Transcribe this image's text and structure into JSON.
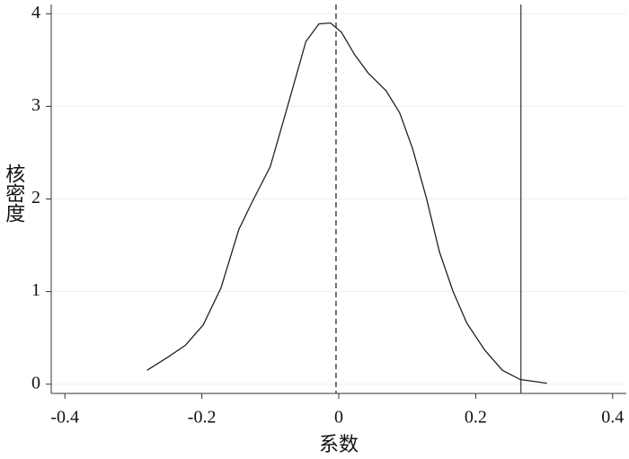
{
  "chart_data": {
    "type": "line",
    "x_label": "系数",
    "y_label": "核密度",
    "x": [
      -0.28,
      -0.25,
      -0.224,
      -0.198,
      -0.172,
      -0.146,
      -0.127,
      -0.1,
      -0.074,
      -0.048,
      -0.029,
      -0.012,
      0.004,
      0.023,
      0.043,
      0.069,
      0.089,
      0.108,
      0.128,
      0.147,
      0.167,
      0.187,
      0.213,
      0.239,
      0.265,
      0.304
    ],
    "series": [
      {
        "color": "#222222",
        "values": [
          0.15,
          0.29,
          0.42,
          0.64,
          1.04,
          1.67,
          1.96,
          2.35,
          3.02,
          3.7,
          3.89,
          3.9,
          3.8,
          3.56,
          3.36,
          3.17,
          2.93,
          2.54,
          2.01,
          1.43,
          1.0,
          0.66,
          0.37,
          0.15,
          0.05,
          0.01
        ]
      }
    ],
    "reference_lines": [
      {
        "value": -0.004,
        "style": "dashed",
        "color": "#444444"
      },
      {
        "value": 0.266,
        "style": "solid",
        "color": "#555555"
      }
    ],
    "xlim": [
      -0.42,
      0.42
    ],
    "ylim": [
      -0.1,
      4.1
    ],
    "xticks": [
      -0.4,
      -0.2,
      0,
      0.2,
      0.4
    ],
    "yticks": [
      0,
      1,
      2,
      3,
      4
    ],
    "grid": true
  }
}
